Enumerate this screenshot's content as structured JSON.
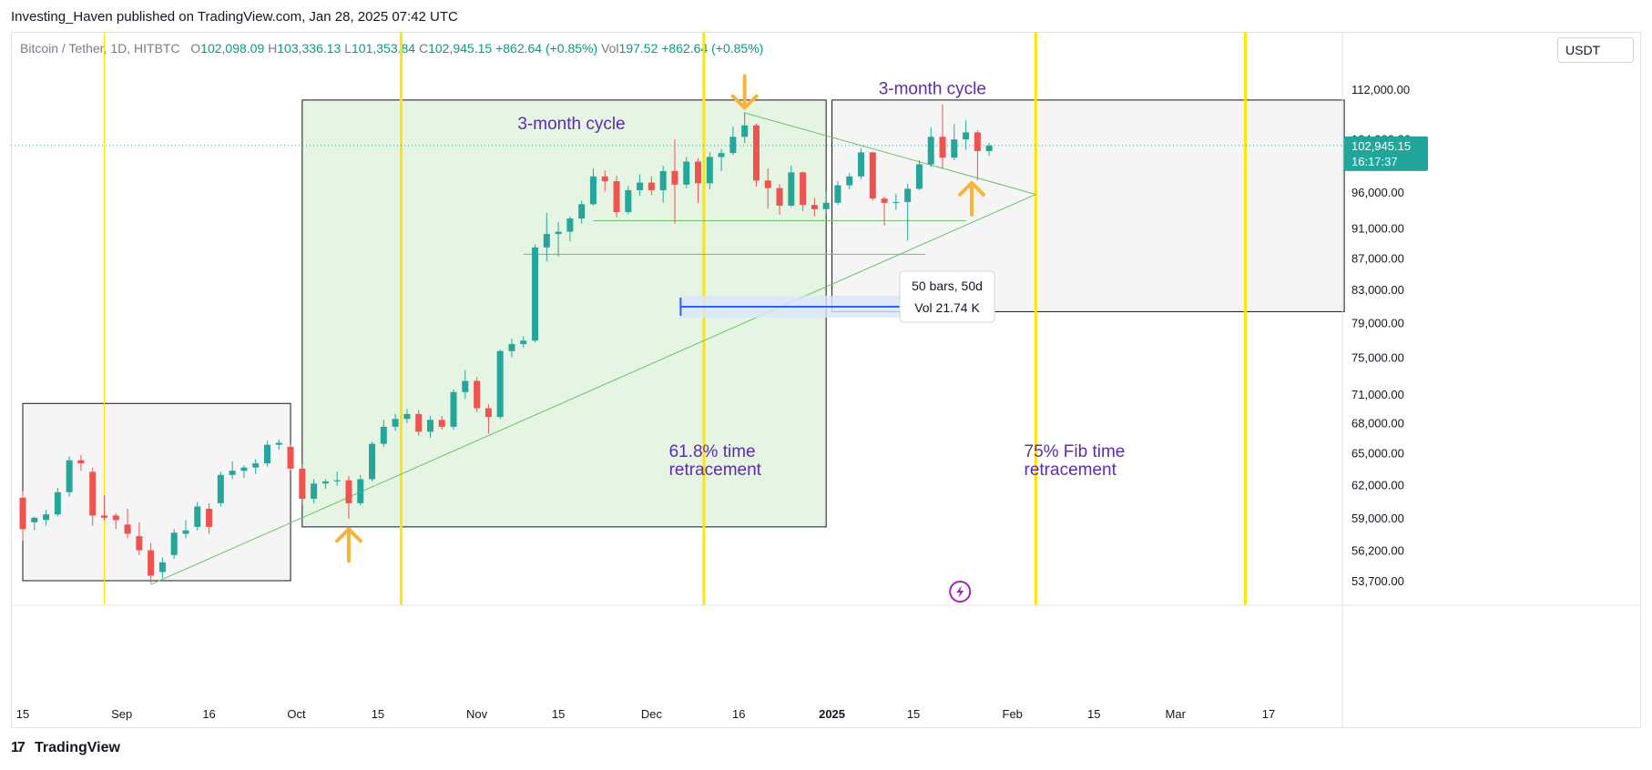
{
  "header": {
    "published": "Investing_Haven published on TradingView.com, Jan 28, 2025 07:42 UTC"
  },
  "legend": {
    "symbol": "Bitcoin / Tether, 1D, HITBTC",
    "open_label": "O",
    "open": "102,098.09",
    "high_label": "H",
    "high": "103,336.13",
    "low_label": "L",
    "low": "101,353.84",
    "close_label": "C",
    "close": "102,945.15",
    "change": "+862.64 (+0.85%)",
    "vol_label": "Vol",
    "vol": "197.52",
    "vol_change": "+862.64 (+0.85%)"
  },
  "currency": "USDT",
  "footer": {
    "brand": "TradingView"
  },
  "colors": {
    "up": "#26a69a",
    "down": "#ef5350",
    "fib_line": "#ffe600",
    "green_zone": "#e6f4e3",
    "gray_zone": "#f5f5f5",
    "trend_line": "#6cc06c",
    "label_purple": "#5b2cad",
    "arrow_orange": "#f9b33b",
    "measure_blue": "#2962ff",
    "price_tag": "#22a59a"
  },
  "chart_data": {
    "type": "candlestick",
    "price_scale_ticks": [
      112000,
      104000,
      96000,
      91000,
      87000,
      83000,
      79000,
      75000,
      71000,
      68000,
      65000,
      62000,
      59000,
      56200,
      53700
    ],
    "price_scale_labels": [
      "112,000.00",
      "104,000.00",
      "96,000.00",
      "91,000.00",
      "87,000.00",
      "83,000.00",
      "79,000.00",
      "75,000.00",
      "71,000.00",
      "68,000.00",
      "65,000.00",
      "62,000.00",
      "59,000.00",
      "56,200.00",
      "53,700.00"
    ],
    "time_ticks": [
      {
        "label": "15",
        "date": "2024-08-15"
      },
      {
        "label": "Sep",
        "date": "2024-09-01"
      },
      {
        "label": "16",
        "date": "2024-09-16"
      },
      {
        "label": "Oct",
        "date": "2024-10-01"
      },
      {
        "label": "15",
        "date": "2024-10-15"
      },
      {
        "label": "Nov",
        "date": "2024-11-01"
      },
      {
        "label": "15",
        "date": "2024-11-15"
      },
      {
        "label": "Dec",
        "date": "2024-12-01"
      },
      {
        "label": "16",
        "date": "2024-12-16"
      },
      {
        "label": "2025",
        "date": "2025-01-01",
        "bold": true
      },
      {
        "label": "15",
        "date": "2025-01-15"
      },
      {
        "label": "Feb",
        "date": "2025-02-01"
      },
      {
        "label": "15",
        "date": "2025-02-15"
      },
      {
        "label": "Mar",
        "date": "2025-03-01"
      },
      {
        "label": "17",
        "date": "2025-03-17"
      }
    ],
    "current_price": {
      "value": 102945.15,
      "label": "102,945.15",
      "countdown": "16:17:37"
    },
    "candles": [
      {
        "date": "2024-08-15",
        "o": 60800,
        "h": 61400,
        "l": 57000,
        "c": 58000
      },
      {
        "date": "2024-08-17",
        "o": 58600,
        "h": 59100,
        "l": 57900,
        "c": 59000
      },
      {
        "date": "2024-08-19",
        "o": 58800,
        "h": 59700,
        "l": 58300,
        "c": 59300
      },
      {
        "date": "2024-08-21",
        "o": 59300,
        "h": 61700,
        "l": 59100,
        "c": 61300
      },
      {
        "date": "2024-08-23",
        "o": 61300,
        "h": 64700,
        "l": 60900,
        "c": 64300
      },
      {
        "date": "2024-08-25",
        "o": 64300,
        "h": 64800,
        "l": 63300,
        "c": 64000
      },
      {
        "date": "2024-08-27",
        "o": 63200,
        "h": 63600,
        "l": 58300,
        "c": 59200
      },
      {
        "date": "2024-08-29",
        "o": 59200,
        "h": 61000,
        "l": 58800,
        "c": 59000
      },
      {
        "date": "2024-08-31",
        "o": 59200,
        "h": 59400,
        "l": 58000,
        "c": 58800
      },
      {
        "date": "2024-09-02",
        "o": 58400,
        "h": 59800,
        "l": 57200,
        "c": 57600
      },
      {
        "date": "2024-09-04",
        "o": 57400,
        "h": 58600,
        "l": 55800,
        "c": 56200
      },
      {
        "date": "2024-09-06",
        "o": 56200,
        "h": 56800,
        "l": 53500,
        "c": 54100
      },
      {
        "date": "2024-09-08",
        "o": 54400,
        "h": 55600,
        "l": 53900,
        "c": 55200
      },
      {
        "date": "2024-09-10",
        "o": 55800,
        "h": 58000,
        "l": 55500,
        "c": 57700
      },
      {
        "date": "2024-09-12",
        "o": 57600,
        "h": 58800,
        "l": 57200,
        "c": 57900
      },
      {
        "date": "2024-09-14",
        "o": 58200,
        "h": 60400,
        "l": 57900,
        "c": 60000
      },
      {
        "date": "2024-09-16",
        "o": 59800,
        "h": 60300,
        "l": 57600,
        "c": 58200
      },
      {
        "date": "2024-09-18",
        "o": 60300,
        "h": 63200,
        "l": 60000,
        "c": 62900
      },
      {
        "date": "2024-09-20",
        "o": 62900,
        "h": 64200,
        "l": 62500,
        "c": 63300
      },
      {
        "date": "2024-09-22",
        "o": 63300,
        "h": 63800,
        "l": 62600,
        "c": 63600
      },
      {
        "date": "2024-09-24",
        "o": 63600,
        "h": 64400,
        "l": 63000,
        "c": 64000
      },
      {
        "date": "2024-09-26",
        "o": 64000,
        "h": 66200,
        "l": 63700,
        "c": 65800
      },
      {
        "date": "2024-09-28",
        "o": 65800,
        "h": 66300,
        "l": 65300,
        "c": 66000
      },
      {
        "date": "2024-09-30",
        "o": 65600,
        "h": 65900,
        "l": 63300,
        "c": 63500
      },
      {
        "date": "2024-10-02",
        "o": 63500,
        "h": 63900,
        "l": 60200,
        "c": 60700
      },
      {
        "date": "2024-10-04",
        "o": 60700,
        "h": 62500,
        "l": 60300,
        "c": 62100
      },
      {
        "date": "2024-10-06",
        "o": 62100,
        "h": 62500,
        "l": 61600,
        "c": 62300
      },
      {
        "date": "2024-10-08",
        "o": 62300,
        "h": 63200,
        "l": 61900,
        "c": 62400
      },
      {
        "date": "2024-10-10",
        "o": 62400,
        "h": 62800,
        "l": 58900,
        "c": 60300
      },
      {
        "date": "2024-10-12",
        "o": 60300,
        "h": 62900,
        "l": 60100,
        "c": 62500
      },
      {
        "date": "2024-10-14",
        "o": 62500,
        "h": 66100,
        "l": 62300,
        "c": 65900
      },
      {
        "date": "2024-10-16",
        "o": 65900,
        "h": 68300,
        "l": 65600,
        "c": 67600
      },
      {
        "date": "2024-10-18",
        "o": 67600,
        "h": 68900,
        "l": 67200,
        "c": 68400
      },
      {
        "date": "2024-10-20",
        "o": 68400,
        "h": 69400,
        "l": 68000,
        "c": 68900
      },
      {
        "date": "2024-10-22",
        "o": 68900,
        "h": 69300,
        "l": 66700,
        "c": 67100
      },
      {
        "date": "2024-10-24",
        "o": 67100,
        "h": 68700,
        "l": 66500,
        "c": 68300
      },
      {
        "date": "2024-10-26",
        "o": 68300,
        "h": 68700,
        "l": 67300,
        "c": 67600
      },
      {
        "date": "2024-10-28",
        "o": 67600,
        "h": 71500,
        "l": 67300,
        "c": 71200
      },
      {
        "date": "2024-10-30",
        "o": 71200,
        "h": 73600,
        "l": 70500,
        "c": 72400
      },
      {
        "date": "2024-11-01",
        "o": 72400,
        "h": 72800,
        "l": 69100,
        "c": 69500
      },
      {
        "date": "2024-11-03",
        "o": 69500,
        "h": 69900,
        "l": 66900,
        "c": 68600
      },
      {
        "date": "2024-11-05",
        "o": 68600,
        "h": 75900,
        "l": 68400,
        "c": 75700
      },
      {
        "date": "2024-11-07",
        "o": 75700,
        "h": 77100,
        "l": 75000,
        "c": 76500
      },
      {
        "date": "2024-11-09",
        "o": 76500,
        "h": 77400,
        "l": 76100,
        "c": 76900
      },
      {
        "date": "2024-11-11",
        "o": 76900,
        "h": 88800,
        "l": 76700,
        "c": 88400
      },
      {
        "date": "2024-11-13",
        "o": 88400,
        "h": 93100,
        "l": 86600,
        "c": 90200
      },
      {
        "date": "2024-11-15",
        "o": 90200,
        "h": 91800,
        "l": 87200,
        "c": 90500
      },
      {
        "date": "2024-11-17",
        "o": 90500,
        "h": 92600,
        "l": 89200,
        "c": 92300
      },
      {
        "date": "2024-11-19",
        "o": 92300,
        "h": 94800,
        "l": 91600,
        "c": 94300
      },
      {
        "date": "2024-11-21",
        "o": 94300,
        "h": 99500,
        "l": 94100,
        "c": 98300
      },
      {
        "date": "2024-11-23",
        "o": 98300,
        "h": 99200,
        "l": 96100,
        "c": 97600
      },
      {
        "date": "2024-11-25",
        "o": 97600,
        "h": 98400,
        "l": 92500,
        "c": 93200
      },
      {
        "date": "2024-11-27",
        "o": 93200,
        "h": 96900,
        "l": 92900,
        "c": 96300
      },
      {
        "date": "2024-11-29",
        "o": 96300,
        "h": 98600,
        "l": 95500,
        "c": 97400
      },
      {
        "date": "2024-12-01",
        "o": 97400,
        "h": 98300,
        "l": 95600,
        "c": 96300
      },
      {
        "date": "2024-12-03",
        "o": 96300,
        "h": 99900,
        "l": 94500,
        "c": 99100
      },
      {
        "date": "2024-12-05",
        "o": 99100,
        "h": 103900,
        "l": 91600,
        "c": 97100
      },
      {
        "date": "2024-12-07",
        "o": 97100,
        "h": 101200,
        "l": 96600,
        "c": 100500
      },
      {
        "date": "2024-12-09",
        "o": 100500,
        "h": 101000,
        "l": 94500,
        "c": 97300
      },
      {
        "date": "2024-12-11",
        "o": 97300,
        "h": 101900,
        "l": 96400,
        "c": 101200
      },
      {
        "date": "2024-12-13",
        "o": 101200,
        "h": 102400,
        "l": 99100,
        "c": 101800
      },
      {
        "date": "2024-12-15",
        "o": 101800,
        "h": 105900,
        "l": 101500,
        "c": 104300
      },
      {
        "date": "2024-12-17",
        "o": 104300,
        "h": 108200,
        "l": 103300,
        "c": 106100
      },
      {
        "date": "2024-12-19",
        "o": 106100,
        "h": 106400,
        "l": 96800,
        "c": 97700
      },
      {
        "date": "2024-12-21",
        "o": 97700,
        "h": 99500,
        "l": 93700,
        "c": 96600
      },
      {
        "date": "2024-12-23",
        "o": 96600,
        "h": 97200,
        "l": 92800,
        "c": 94100
      },
      {
        "date": "2024-12-25",
        "o": 94100,
        "h": 99900,
        "l": 93900,
        "c": 98900
      },
      {
        "date": "2024-12-27",
        "o": 98900,
        "h": 99000,
        "l": 93300,
        "c": 94200
      },
      {
        "date": "2024-12-29",
        "o": 94200,
        "h": 95200,
        "l": 92600,
        "c": 93600
      },
      {
        "date": "2024-12-31",
        "o": 93600,
        "h": 96100,
        "l": 92900,
        "c": 94500
      },
      {
        "date": "2025-01-02",
        "o": 94500,
        "h": 97600,
        "l": 94200,
        "c": 97000
      },
      {
        "date": "2025-01-04",
        "o": 97000,
        "h": 98800,
        "l": 96400,
        "c": 98300
      },
      {
        "date": "2025-01-06",
        "o": 98300,
        "h": 102500,
        "l": 97900,
        "c": 101900
      },
      {
        "date": "2025-01-08",
        "o": 101900,
        "h": 102000,
        "l": 94800,
        "c": 95100
      },
      {
        "date": "2025-01-10",
        "o": 95100,
        "h": 95400,
        "l": 91300,
        "c": 94500
      },
      {
        "date": "2025-01-12",
        "o": 94500,
        "h": 95800,
        "l": 93500,
        "c": 94600
      },
      {
        "date": "2025-01-14",
        "o": 94600,
        "h": 97200,
        "l": 89300,
        "c": 96500
      },
      {
        "date": "2025-01-16",
        "o": 96500,
        "h": 100700,
        "l": 96300,
        "c": 100100
      },
      {
        "date": "2025-01-18",
        "o": 100100,
        "h": 105800,
        "l": 99700,
        "c": 104300
      },
      {
        "date": "2025-01-20",
        "o": 104300,
        "h": 109500,
        "l": 99500,
        "c": 101100
      },
      {
        "date": "2025-01-22",
        "o": 101100,
        "h": 106300,
        "l": 100700,
        "c": 103900
      },
      {
        "date": "2025-01-24",
        "o": 103900,
        "h": 106900,
        "l": 102300,
        "c": 105000
      },
      {
        "date": "2025-01-26",
        "o": 105000,
        "h": 105400,
        "l": 97700,
        "c": 102100
      },
      {
        "date": "2025-01-28",
        "o": 102100,
        "h": 103336,
        "l": 101354,
        "c": 102945
      }
    ],
    "fib_time_lines": [
      "2024-08-29",
      "2024-10-19",
      "2024-12-10",
      "2025-02-05",
      "2025-03-13"
    ],
    "zones": [
      {
        "kind": "gray",
        "x1": "2024-08-15",
        "x2": "2024-09-30",
        "y1": 53700,
        "y2": 70000
      },
      {
        "kind": "green",
        "x1": "2024-10-02",
        "x2": "2024-12-31",
        "y1": 58200,
        "y2": 110200
      },
      {
        "kind": "gray",
        "x1": "2025-01-01",
        "x2": "2025-03-30",
        "y1": 80300,
        "y2": 110200
      }
    ],
    "trend_lines": [
      {
        "x1": "2024-09-06",
        "y1": 53400,
        "x2": "2025-02-05",
        "y2": 95700
      },
      {
        "x1": "2024-12-17",
        "y1": 108100,
        "x2": "2025-02-05",
        "y2": 95700
      },
      {
        "x1": "2024-11-09",
        "y1": 87500,
        "x2": "2025-01-17",
        "y2": 87500
      },
      {
        "x1": "2024-11-21",
        "y1": 92000,
        "x2": "2025-01-24",
        "y2": 92000
      }
    ],
    "measure": {
      "x1": "2024-12-06",
      "x2": "2025-01-25",
      "y": 80900,
      "label_bars": "50 bars, 50d",
      "label_vol": "Vol 21.74 K"
    },
    "annotations": [
      {
        "text": "3-month cycle",
        "date": "2024-11-08",
        "price": 105500,
        "lines": [
          "3-month cycle"
        ]
      },
      {
        "text": "3-month cycle",
        "date": "2025-01-09",
        "price": 111200,
        "lines": [
          "3-month cycle"
        ]
      },
      {
        "text": "61.8% time retracement",
        "date": "2024-12-04",
        "price": 64600,
        "lines": [
          "61.8% time",
          "retracement"
        ]
      },
      {
        "text": "75% Fib time retracement",
        "date": "2025-02-03",
        "price": 64600,
        "lines": [
          "75% Fib time",
          "retracement"
        ]
      }
    ],
    "arrows": [
      {
        "dir": "down",
        "date": "2024-12-17",
        "price": 111600
      },
      {
        "dir": "up",
        "date": "2024-10-10",
        "price": 56600
      },
      {
        "dir": "up",
        "date": "2025-01-25",
        "price": 95000
      }
    ],
    "flash_icon": {
      "date": "2025-01-23"
    }
  }
}
